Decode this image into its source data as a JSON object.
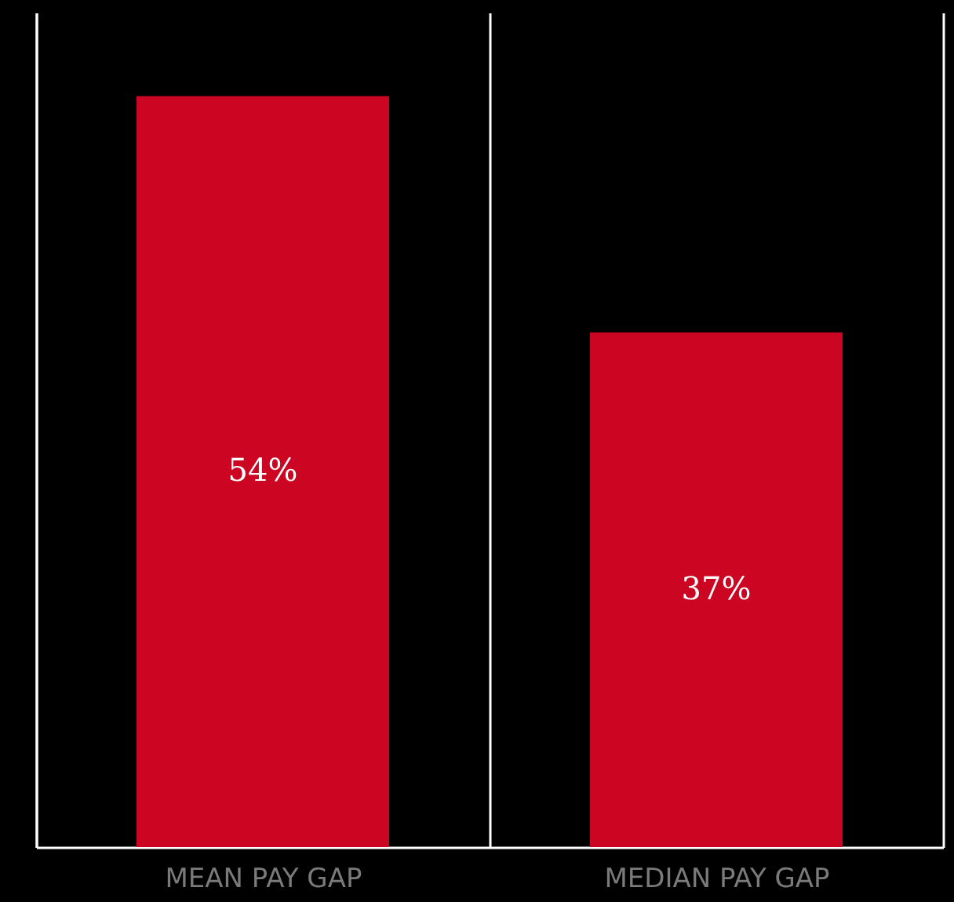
{
  "chart_data": {
    "type": "bar",
    "categories": [
      "MEAN PAY GAP",
      "MEDIAN PAY GAP"
    ],
    "values": [
      54,
      37
    ],
    "value_labels": [
      "54%",
      "37%"
    ],
    "color": "#cc0622",
    "ylim": [
      0,
      60
    ],
    "grid": "x",
    "tick_labels": "x"
  }
}
